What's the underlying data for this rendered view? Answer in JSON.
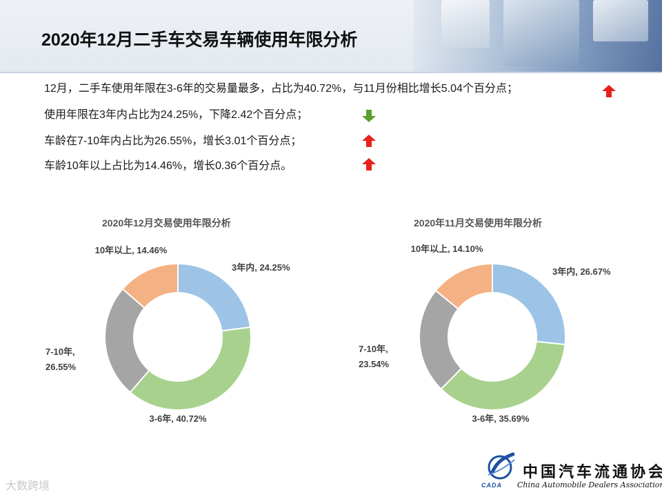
{
  "page": {
    "title": "2020年12月二手车交易车辆使用年限分析",
    "bullets": [
      {
        "text": "12月，二手车使用年限在3-6年的交易量最多，占比为40.72%，与11月份相比增长5.04个百分点；",
        "trend": "up",
        "icon": "red-up-arrow-icon"
      },
      {
        "text": "使用年限在3年内占比为24.25%，下降2.42个百分点；",
        "trend": "down",
        "icon": "green-down-arrow-icon"
      },
      {
        "text": "车龄在7-10年内占比为26.55%，增长3.01个百分点；",
        "trend": "up",
        "icon": "red-up-arrow-icon"
      },
      {
        "text": "车龄10年以上占比为14.46%，增长0.36个百分点。",
        "trend": "up",
        "icon": "red-up-arrow-icon"
      }
    ],
    "colors": {
      "up": "#e8211d",
      "down": "#5aa02c",
      "seg_3y": "#9dc3e6",
      "seg_3_6": "#a9d18e",
      "seg_7_10": "#a5a5a5",
      "seg_10plus": "#f4b183"
    },
    "watermark": "大数跨境",
    "logo": {
      "cn": "中国汽车流通协会",
      "en": "China Automobile Dealers Association",
      "mark": "CADA"
    }
  },
  "chart_data": [
    {
      "type": "pie",
      "donut": true,
      "title": "2020年12月交易使用年限分析",
      "categories": [
        "3年内",
        "3-6年",
        "7-10年",
        "10年以上"
      ],
      "values": [
        24.25,
        40.72,
        26.55,
        14.46
      ],
      "unit": "%",
      "data_labels": [
        "3年内, 24.25%",
        "3-6年, 40.72%",
        "7-10年, 26.55%",
        "10年以上, 14.46%"
      ],
      "legend": "none"
    },
    {
      "type": "pie",
      "donut": true,
      "title": "2020年11月交易使用年限分析",
      "categories": [
        "3年内",
        "3-6年",
        "7-10年",
        "10年以上"
      ],
      "values": [
        26.67,
        35.69,
        23.54,
        14.1
      ],
      "unit": "%",
      "data_labels": [
        "3年内, 26.67%",
        "3-6年, 35.69%",
        "7-10年, 23.54%",
        "10年以上, 14.10%"
      ],
      "legend": "none"
    }
  ]
}
